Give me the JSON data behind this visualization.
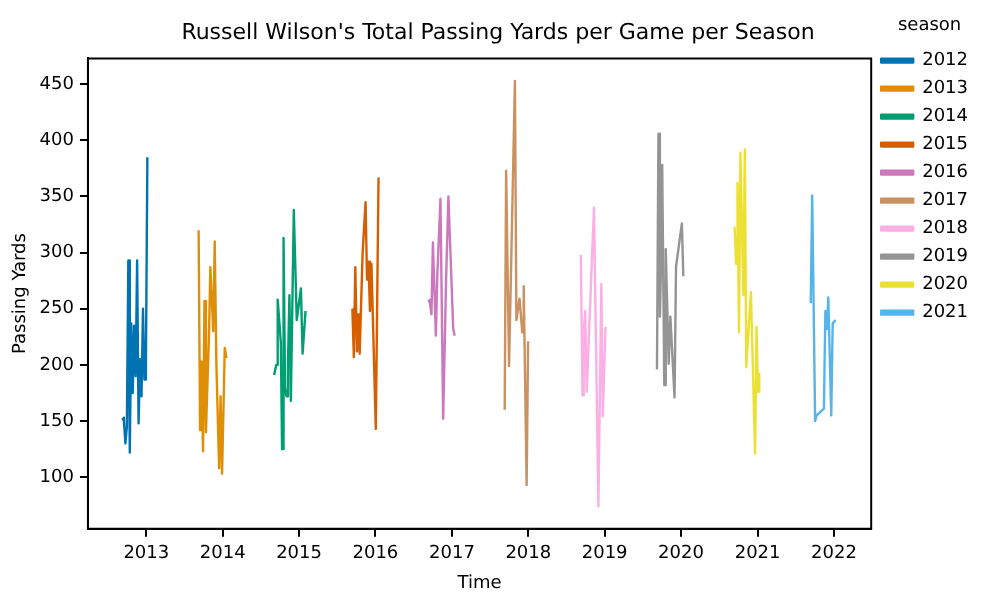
{
  "chart_data": {
    "type": "line",
    "title": "Russell Wilson's Total Passing Yards per Game per Season",
    "xlabel": "Time",
    "ylabel": "Passing Yards",
    "legend_title": "season",
    "legend": "right",
    "grid": false,
    "xlim": [
      "2012-03-28",
      "2022-06-28"
    ],
    "xticks": [
      "2013",
      "2014",
      "2015",
      "2016",
      "2017",
      "2018",
      "2019",
      "2020",
      "2021",
      "2022"
    ],
    "ylim": [
      54,
      473
    ],
    "yticks": [
      100,
      150,
      200,
      250,
      300,
      350,
      400,
      450
    ],
    "series": [
      {
        "name": "2012",
        "color": "#0173b2",
        "x": [
          "2012-09-09",
          "2012-09-16",
          "2012-09-23",
          "2012-09-30",
          "2012-10-07",
          "2012-10-14",
          "2012-10-21",
          "2012-10-28",
          "2012-11-04",
          "2012-11-11",
          "2012-11-18",
          "2012-11-25",
          "2012-12-02",
          "2012-12-09",
          "2012-12-16",
          "2012-12-23",
          "2012-12-30",
          "2013-01-06"
        ],
        "values": [
          153,
          150,
          130,
          145,
          293,
          122,
          237,
          175,
          235,
          190,
          293,
          148,
          205,
          172,
          250,
          187,
          200,
          385
        ]
      },
      {
        "name": "2013",
        "color": "#de8f05",
        "x": [
          "2013-09-08",
          "2013-09-15",
          "2013-09-22",
          "2013-09-29",
          "2013-10-06",
          "2013-10-13",
          "2013-10-28",
          "2013-11-03",
          "2013-11-17",
          "2013-11-24",
          "2013-12-02",
          "2013-12-15",
          "2013-12-22",
          "2013-12-29",
          "2014-01-11",
          "2014-01-19"
        ],
        "values": [
          320,
          142,
          203,
          123,
          257,
          140,
          230,
          287,
          230,
          310,
          200,
          108,
          172,
          103,
          215,
          206
        ]
      },
      {
        "name": "2014",
        "color": "#029e73",
        "x": [
          "2014-09-04",
          "2014-09-14",
          "2014-09-21",
          "2014-10-06",
          "2014-10-12",
          "2014-10-19",
          "2014-10-26",
          "2014-11-02",
          "2014-11-09",
          "2014-11-16",
          "2014-11-23",
          "2014-12-07",
          "2014-12-21",
          "2015-01-10",
          "2015-01-18",
          "2015-02-01"
        ],
        "values": [
          191,
          200,
          258,
          220,
          125,
          313,
          180,
          172,
          200,
          262,
          168,
          338,
          240,
          268,
          210,
          248
        ]
      },
      {
        "name": "2015",
        "color": "#d55e00",
        "x": [
          "2015-09-13",
          "2015-09-20",
          "2015-09-27",
          "2015-10-05",
          "2015-10-11",
          "2015-10-18",
          "2015-10-22",
          "2015-11-01",
          "2015-11-15",
          "2015-11-22",
          "2015-11-29",
          "2015-12-06",
          "2015-12-13",
          "2016-01-03",
          "2016-01-16"
        ],
        "values": [
          250,
          207,
          287,
          212,
          245,
          210,
          237,
          300,
          345,
          276,
          292,
          248,
          290,
          143,
          367
        ]
      },
      {
        "name": "2016",
        "color": "#cc78bc",
        "x": [
          "2016-09-11",
          "2016-09-18",
          "2016-09-25",
          "2016-10-02",
          "2016-10-16",
          "2016-10-23",
          "2016-11-07",
          "2016-11-20",
          "2016-12-04",
          "2016-12-15",
          "2017-01-07",
          "2017-01-14"
        ],
        "values": [
          258,
          255,
          245,
          309,
          226,
          280,
          348,
          152,
          276,
          350,
          232,
          226
        ]
      },
      {
        "name": "2017",
        "color": "#ca9161",
        "x": [
          "2017-09-10",
          "2017-09-17",
          "2017-10-01",
          "2017-10-29",
          "2017-11-05",
          "2017-11-20",
          "2017-12-03",
          "2017-12-10",
          "2017-12-24",
          "2017-12-31"
        ],
        "values": [
          160,
          373,
          199,
          453,
          240,
          259,
          229,
          270,
          93,
          221
        ]
      },
      {
        "name": "2018",
        "color": "#fbafe4",
        "x": [
          "2018-09-09",
          "2018-09-17",
          "2018-09-23",
          "2018-09-30",
          "2018-10-07",
          "2018-11-11",
          "2018-12-02",
          "2018-12-16",
          "2018-12-23",
          "2019-01-05"
        ],
        "values": [
          298,
          173,
          230,
          248,
          176,
          340,
          74,
          272,
          154,
          234
        ]
      },
      {
        "name": "2019",
        "color": "#949494",
        "x": [
          "2019-09-08",
          "2019-09-15",
          "2019-09-22",
          "2019-09-29",
          "2019-10-03",
          "2019-10-13",
          "2019-10-20",
          "2019-11-03",
          "2019-11-11",
          "2019-12-01",
          "2019-12-08",
          "2020-01-05",
          "2020-01-12"
        ],
        "values": [
          196,
          406,
          243,
          300,
          378,
          182,
          303,
          201,
          243,
          171,
          287,
          326,
          279
        ]
      },
      {
        "name": "2020",
        "color": "#ece133",
        "x": [
          "2020-09-13",
          "2020-09-20",
          "2020-09-27",
          "2020-10-04",
          "2020-10-11",
          "2020-10-25",
          "2020-11-01",
          "2020-11-08",
          "2020-11-30",
          "2020-12-20",
          "2020-12-27",
          "2021-01-03",
          "2021-01-09"
        ],
        "values": [
          323,
          290,
          362,
          229,
          389,
          262,
          392,
          198,
          265,
          121,
          234,
          176,
          193
        ]
      },
      {
        "name": "2021",
        "color": "#56b4e9",
        "x": [
          "2021-09-12",
          "2021-09-19",
          "2021-10-03",
          "2021-10-10",
          "2021-11-14",
          "2021-11-21",
          "2021-11-28",
          "2021-12-05",
          "2021-12-19",
          "2021-12-26",
          "2022-01-09"
        ],
        "values": [
          255,
          351,
          150,
          155,
          161,
          248,
          232,
          260,
          155,
          237,
          240
        ]
      }
    ]
  }
}
